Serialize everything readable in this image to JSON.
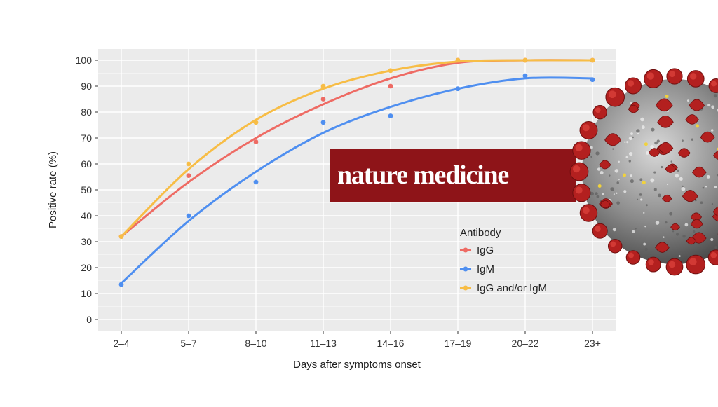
{
  "brand": {
    "text": "nature medicine",
    "color": "#8e1418"
  },
  "virus": {
    "name": "coronavirus-illustration",
    "spike_color": "#b3201f",
    "body_color": "#8a8a8a"
  },
  "colors": {
    "panel": "#ebebeb",
    "grid": "#ffffff",
    "IgG": "#ee6b64",
    "IgM": "#4f8ff0",
    "IgG and/or IgM": "#f7bd46"
  },
  "chart_data": {
    "type": "scatter",
    "title": "",
    "xlabel": "Days after symptoms onset",
    "ylabel": "Positive rate (%)",
    "categories": [
      "2–4",
      "5–7",
      "8–10",
      "11–13",
      "14–16",
      "17–19",
      "20–22",
      "23+"
    ],
    "ylim": [
      0,
      100
    ],
    "yticks": [
      0,
      10,
      20,
      30,
      40,
      50,
      60,
      70,
      80,
      90,
      100
    ],
    "grid": true,
    "legend": {
      "title": "Antibody",
      "position": "right-inside"
    },
    "series": [
      {
        "name": "IgG",
        "points": [
          32,
          55.5,
          68.5,
          85,
          90,
          100,
          100,
          100
        ],
        "fit": [
          32,
          53,
          70,
          83,
          93,
          99,
          100,
          100
        ]
      },
      {
        "name": "IgM",
        "points": [
          13.5,
          40,
          53,
          76,
          78.5,
          89,
          94,
          92.5
        ],
        "fit": [
          14,
          38,
          57,
          72,
          82,
          89,
          93,
          93
        ]
      },
      {
        "name": "IgG and/or IgM",
        "points": [
          32,
          60,
          76,
          90,
          96,
          100,
          100,
          100
        ],
        "fit": [
          32,
          58,
          77,
          89,
          96,
          99.5,
          100,
          100
        ]
      }
    ]
  }
}
